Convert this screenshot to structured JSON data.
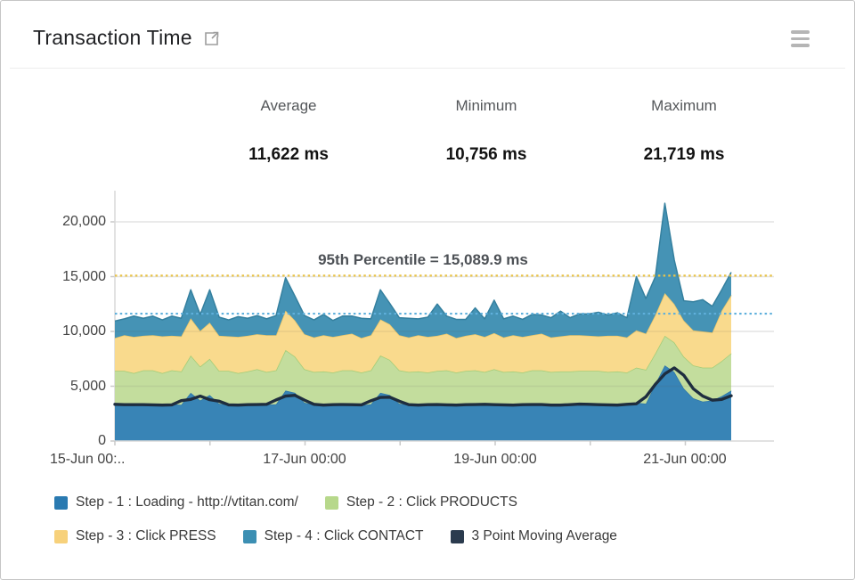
{
  "header": {
    "title": "Transaction Time",
    "external_link_icon": "open-in-new-window",
    "menu_icon": "hamburger-menu"
  },
  "stats": {
    "items": [
      {
        "label": "Average",
        "value": "11,622 ms"
      },
      {
        "label": "Minimum",
        "value": "10,756 ms"
      },
      {
        "label": "Maximum",
        "value": "21,719 ms"
      }
    ]
  },
  "chart_data": {
    "type": "area",
    "stacked": true,
    "grid": true,
    "legend_position": "bottom",
    "ylim": [
      0,
      22500
    ],
    "ytick_values": [
      20000,
      15000,
      10000,
      5000,
      0
    ],
    "ytick_labels": [
      "20,000",
      "15,000",
      "10,000",
      "5,000",
      "0"
    ],
    "xtick_labels": [
      "15-Jun 00:..",
      "17-Jun 00:00",
      "19-Jun 00:00",
      "21-Jun 00:00"
    ],
    "annotation": {
      "text": "95th Percentile = 15,089.9 ms",
      "value": 15089.9,
      "color": "#e9c348"
    },
    "average_line": {
      "value": 11622,
      "color": "#5fb0dc"
    },
    "series": [
      {
        "name": "Step - 1 : Loading - http://vtitan.com/",
        "type": "area",
        "color": "#3884b6",
        "edge": "#2e76a8",
        "legend_color": "#2a7ab1",
        "values": [
          3400,
          3300,
          3250,
          3400,
          3300,
          3200,
          3350,
          3300,
          4400,
          3700,
          4200,
          3400,
          3300,
          3250,
          3300,
          3400,
          3300,
          3350,
          4600,
          4400,
          3500,
          3300,
          3250,
          3300,
          3400,
          3300,
          3250,
          3350,
          4400,
          4200,
          3400,
          3300,
          3250,
          3300,
          3350,
          3300,
          3250,
          3300,
          3400,
          3300,
          3350,
          3300,
          3250,
          3300,
          3400,
          3300,
          3300,
          3250,
          3300,
          3400,
          3300,
          3350,
          3300,
          3250,
          3300,
          3500,
          3400,
          5200,
          6900,
          6300,
          4800,
          3900,
          3600,
          3700,
          4100,
          4600
        ]
      },
      {
        "name": "Step - 2 : Click PRODUCTS",
        "type": "area",
        "color": "#c3dd9d",
        "edge": "#a3cc77",
        "legend_color": "#b7d88b",
        "values": [
          3000,
          3100,
          2950,
          3050,
          3150,
          3000,
          3100,
          3050,
          3400,
          3100,
          3300,
          3000,
          3100,
          2950,
          3050,
          3150,
          3000,
          3100,
          3700,
          3300,
          3050,
          3000,
          3100,
          2950,
          3050,
          3150,
          3000,
          3100,
          3400,
          3200,
          3050,
          3000,
          3100,
          2950,
          3050,
          3150,
          3000,
          3100,
          3050,
          3000,
          3200,
          3000,
          3100,
          2950,
          3050,
          3150,
          3000,
          3100,
          3050,
          3000,
          3100,
          3050,
          3000,
          3100,
          2950,
          3200,
          3100,
          2800,
          2700,
          2700,
          2900,
          3000,
          3100,
          3000,
          3200,
          3400
        ]
      },
      {
        "name": "Step - 3 : Click PRESS",
        "type": "area",
        "color": "#f9da8d",
        "edge": "#eec768",
        "legend_color": "#f7d17b",
        "values": [
          3000,
          3250,
          3300,
          3150,
          3200,
          3350,
          3150,
          3200,
          3400,
          3250,
          3300,
          3200,
          3150,
          3300,
          3250,
          3200,
          3350,
          3200,
          3600,
          3300,
          3200,
          3150,
          3300,
          3250,
          3200,
          3350,
          3150,
          3200,
          3300,
          3250,
          3200,
          3150,
          3300,
          3250,
          3200,
          3350,
          3150,
          3200,
          3300,
          3200,
          3300,
          3150,
          3300,
          3250,
          3200,
          3350,
          3150,
          3200,
          3300,
          3250,
          3200,
          3150,
          3300,
          3250,
          3200,
          3400,
          3300,
          3500,
          3900,
          3500,
          3300,
          3200,
          3300,
          3200,
          4600,
          5300
        ]
      },
      {
        "name": "Step - 4 : Click CONTACT",
        "type": "area",
        "color": "#4593b5",
        "edge": "#35809f",
        "legend_color": "#3c8fb3",
        "values": [
          1550,
          1500,
          1900,
          1600,
          1750,
          1500,
          1800,
          1650,
          2600,
          1500,
          3000,
          1700,
          1500,
          1850,
          1600,
          1700,
          1500,
          1800,
          3000,
          2200,
          1700,
          1600,
          1900,
          1500,
          1750,
          1600,
          1800,
          1500,
          2700,
          1900,
          1600,
          1750,
          1500,
          1800,
          2900,
          1600,
          1700,
          1500,
          2400,
          1650,
          3000,
          1700,
          1750,
          1600,
          1900,
          1700,
          1800,
          2300,
          1600,
          1950,
          2000,
          2200,
          1900,
          2100,
          1800,
          4900,
          3200,
          3500,
          8200,
          4000,
          1800,
          2600,
          2900,
          2400,
          1900,
          2100
        ]
      },
      {
        "name": "3 Point Moving Average",
        "type": "line",
        "color": "#1e2d3f",
        "legend_color": "#2b3b4e",
        "values": [
          3350,
          3320,
          3320,
          3320,
          3300,
          3280,
          3300,
          3680,
          3800,
          4100,
          3770,
          3630,
          3300,
          3280,
          3320,
          3330,
          3350,
          3750,
          4100,
          4170,
          3730,
          3350,
          3280,
          3320,
          3330,
          3320,
          3300,
          3670,
          3980,
          4000,
          3630,
          3320,
          3280,
          3320,
          3330,
          3300,
          3280,
          3320,
          3330,
          3350,
          3320,
          3300,
          3280,
          3320,
          3330,
          3330,
          3280,
          3280,
          3320,
          3370,
          3350,
          3320,
          3300,
          3280,
          3350,
          3400,
          4030,
          5170,
          6130,
          6670,
          6000,
          4770,
          4100,
          3730,
          3800,
          4130
        ]
      }
    ]
  }
}
